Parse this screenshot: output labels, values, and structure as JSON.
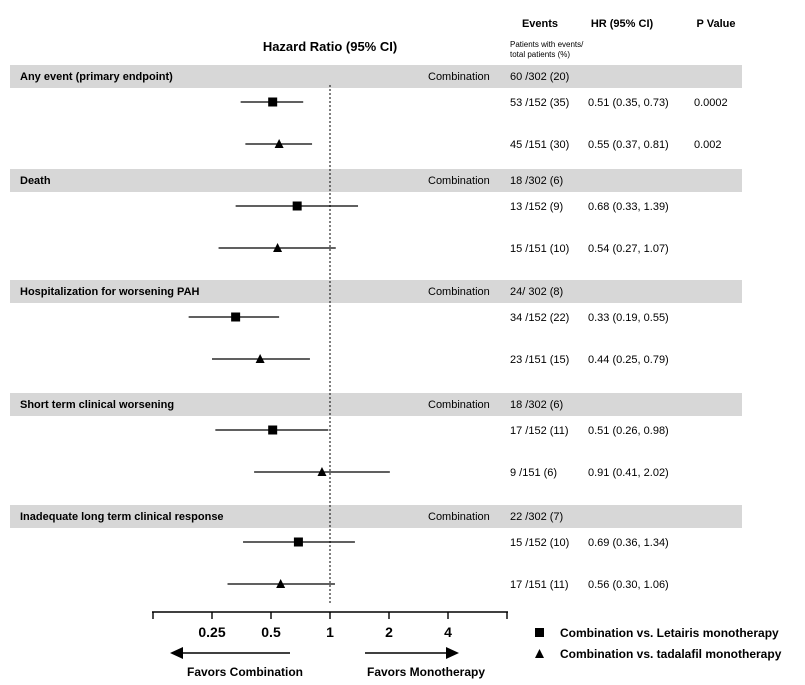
{
  "chart_data": {
    "type": "forest",
    "title": "Hazard Ratio (95% CI)",
    "columns": {
      "events": "Events",
      "events_sub_1": "Patients with events/",
      "events_sub_2": "total patients (%)",
      "hr": "HR (95% CI)",
      "p": "P Value"
    },
    "combination_label": "Combination",
    "x_scale": "log2",
    "xlim": [
      0.125,
      8
    ],
    "ticks": [
      "0.25",
      "0.5",
      "1",
      "2",
      "4"
    ],
    "tick_values": [
      0.25,
      0.5,
      1,
      2,
      4
    ],
    "reference_line": 1,
    "favors_left": "Favors Combination",
    "favors_right": "Favors Monotherapy",
    "series": [
      {
        "name": "Combination vs. Letairis monotherapy",
        "marker": "square"
      },
      {
        "name": "Combination vs. tadalafil monotherapy",
        "marker": "triangle"
      }
    ],
    "groups": [
      {
        "label": "Any event (primary endpoint)",
        "combination_events": "60 /302 (20)",
        "rows": [
          {
            "series": 0,
            "hr": 0.51,
            "lo": 0.35,
            "hi": 0.73,
            "events": "53 /152 (35)",
            "hr_text": "0.51 (0.35, 0.73)",
            "p": "0.0002"
          },
          {
            "series": 1,
            "hr": 0.55,
            "lo": 0.37,
            "hi": 0.81,
            "events": "45 /151 (30)",
            "hr_text": "0.55 (0.37, 0.81)",
            "p": "0.002"
          }
        ]
      },
      {
        "label": "Death",
        "combination_events": "18 /302 (6)",
        "rows": [
          {
            "series": 0,
            "hr": 0.68,
            "lo": 0.33,
            "hi": 1.39,
            "events": "13 /152 (9)",
            "hr_text": "0.68 (0.33, 1.39)",
            "p": ""
          },
          {
            "series": 1,
            "hr": 0.54,
            "lo": 0.27,
            "hi": 1.07,
            "events": "15 /151 (10)",
            "hr_text": "0.54 (0.27, 1.07)",
            "p": ""
          }
        ]
      },
      {
        "label": "Hospitalization for worsening PAH",
        "combination_events": "24/ 302 (8)",
        "rows": [
          {
            "series": 0,
            "hr": 0.33,
            "lo": 0.19,
            "hi": 0.55,
            "events": "34 /152 (22)",
            "hr_text": "0.33 (0.19, 0.55)",
            "p": ""
          },
          {
            "series": 1,
            "hr": 0.44,
            "lo": 0.25,
            "hi": 0.79,
            "events": "23 /151 (15)",
            "hr_text": "0.44 (0.25, 0.79)",
            "p": ""
          }
        ]
      },
      {
        "label": "Short term clinical worsening",
        "combination_events": "18 /302 (6)",
        "rows": [
          {
            "series": 0,
            "hr": 0.51,
            "lo": 0.26,
            "hi": 0.98,
            "events": "17 /152 (11)",
            "hr_text": "0.51 (0.26, 0.98)",
            "p": ""
          },
          {
            "series": 1,
            "hr": 0.91,
            "lo": 0.41,
            "hi": 2.02,
            "events": "9 /151 (6)",
            "hr_text": "0.91 (0.41, 2.02)",
            "p": ""
          }
        ]
      },
      {
        "label": "Inadequate long term clinical response",
        "combination_events": "22 /302 (7)",
        "rows": [
          {
            "series": 0,
            "hr": 0.69,
            "lo": 0.36,
            "hi": 1.34,
            "events": "15 /152 (10)",
            "hr_text": "0.69 (0.36, 1.34)",
            "p": ""
          },
          {
            "series": 1,
            "hr": 0.56,
            "lo": 0.3,
            "hi": 1.06,
            "events": "17 /151 (11)",
            "hr_text": "0.56 (0.30, 1.06)",
            "p": ""
          }
        ]
      }
    ]
  }
}
